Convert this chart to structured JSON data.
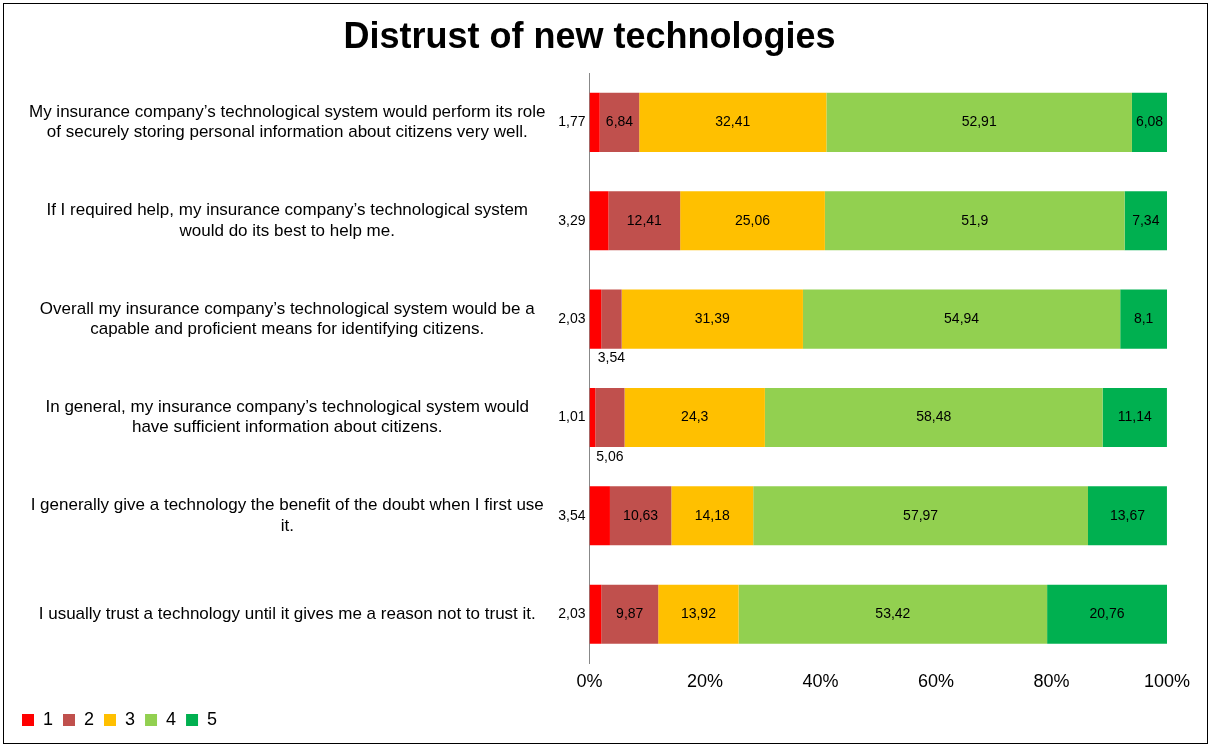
{
  "chart_data": {
    "type": "bar",
    "orientation": "horizontal",
    "stacked": true,
    "title": "Distrust of new technologies",
    "categories": [
      "My insurance company’s technological system would perform its role of securely storing personal information about citizens very well.",
      "If I required help, my insurance company’s technological system would do its best to help me.",
      "Overall my insurance company’s technological system would be a capable and proficient means for identifying citizens.",
      "In general, my insurance company’s technological system would have sufficient information about citizens.",
      "I generally give a technology the benefit of the doubt when I first use it.",
      "I usually trust a technology until it gives me a reason not to trust it."
    ],
    "series": [
      {
        "name": "1",
        "color": "#ff0000",
        "values": [
          1.77,
          3.29,
          2.03,
          1.01,
          3.54,
          2.03
        ],
        "value_labels": [
          "1,77",
          "3,29",
          "2,03",
          "1,01",
          "3,54",
          "2,03"
        ]
      },
      {
        "name": "2",
        "color": "#c0504d",
        "values": [
          6.84,
          12.41,
          3.54,
          5.06,
          10.63,
          9.87
        ],
        "value_labels": [
          "6,84",
          "12,41",
          "3,54",
          "5,06",
          "10,63",
          "9,87"
        ]
      },
      {
        "name": "3",
        "color": "#ffc000",
        "values": [
          32.41,
          25.06,
          31.39,
          24.3,
          14.18,
          13.92
        ],
        "value_labels": [
          "32,41",
          "25,06",
          "31,39",
          "24,3",
          "14,18",
          "13,92"
        ]
      },
      {
        "name": "4",
        "color": "#92d050",
        "values": [
          52.91,
          51.9,
          54.94,
          58.48,
          57.97,
          53.42
        ],
        "value_labels": [
          "52,91",
          "51,9",
          "54,94",
          "58,48",
          "57,97",
          "53,42"
        ]
      },
      {
        "name": "5",
        "color": "#00b050",
        "values": [
          6.08,
          7.34,
          8.1,
          11.14,
          13.67,
          20.76
        ],
        "value_labels": [
          "6,08",
          "7,34",
          "8,1",
          "11,14",
          "13,67",
          "20,76"
        ]
      }
    ],
    "xlim": [
      0,
      100
    ],
    "xticks": [
      {
        "value": 0,
        "label": "0%"
      },
      {
        "value": 20,
        "label": "20%"
      },
      {
        "value": 40,
        "label": "40%"
      },
      {
        "value": 60,
        "label": "60%"
      },
      {
        "value": 80,
        "label": "80%"
      },
      {
        "value": 100,
        "label": "100%"
      }
    ],
    "grid": false,
    "legend": "bottom left"
  }
}
